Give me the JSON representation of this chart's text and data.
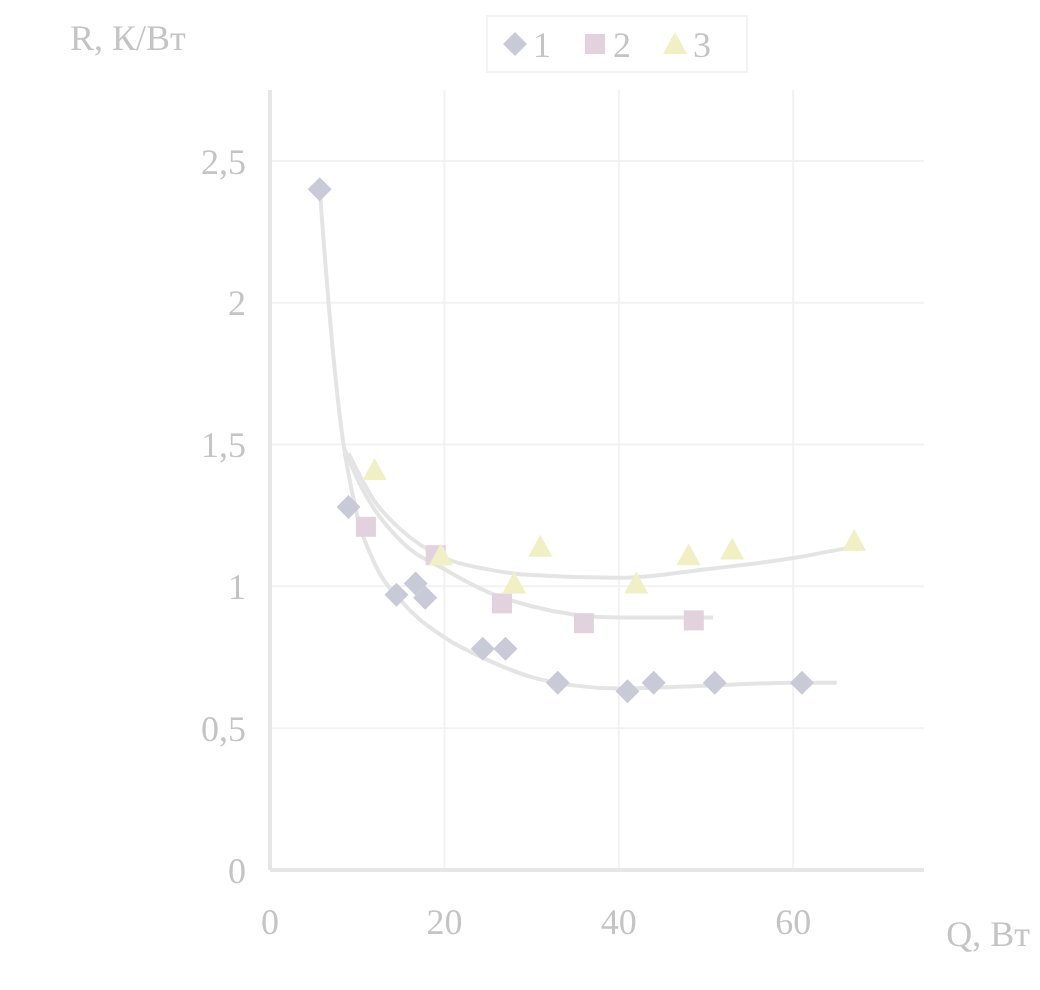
{
  "chart_data": {
    "type": "scatter",
    "xlabel": "Q, Вт",
    "ylabel": "R, К/Вт",
    "xlim": [
      0,
      75
    ],
    "ylim": [
      0,
      2.75
    ],
    "xticks": [
      0,
      20,
      40,
      60
    ],
    "yticks": [
      {
        "value": 0,
        "label": "0"
      },
      {
        "value": 0.5,
        "label": "0,5"
      },
      {
        "value": 1,
        "label": "1"
      },
      {
        "value": 1.5,
        "label": "1,5"
      },
      {
        "value": 2,
        "label": "2"
      },
      {
        "value": 2.5,
        "label": "2,5"
      }
    ],
    "grid": true,
    "legend": "top",
    "line_style": "solid",
    "series": [
      {
        "name": "1",
        "marker": "diamond",
        "color": "#c9cad8",
        "x": [
          5.7,
          9,
          14.5,
          16.7,
          17.8,
          24.4,
          27,
          33,
          41,
          44,
          51,
          61
        ],
        "values": [
          2.4,
          1.28,
          0.97,
          1.01,
          0.96,
          0.78,
          0.78,
          0.66,
          0.63,
          0.66,
          0.66,
          0.66
        ]
      },
      {
        "name": "2",
        "marker": "square",
        "color": "#e2d2de",
        "x": [
          11,
          19,
          26.6,
          36,
          48.6
        ],
        "values": [
          1.21,
          1.11,
          0.94,
          0.87,
          0.88
        ]
      },
      {
        "name": "3",
        "marker": "triangle",
        "color": "#f0f0c4",
        "x": [
          12,
          19.6,
          28,
          31,
          42,
          48,
          53,
          67
        ],
        "values": [
          1.41,
          1.11,
          1.01,
          1.14,
          1.01,
          1.11,
          1.13,
          1.16
        ]
      },
      {
        "type": "line",
        "color": "#e4e4e4",
        "x": [
          5.7,
          7,
          8,
          10,
          12,
          15,
          20,
          25,
          30,
          35,
          40,
          50,
          60,
          65
        ],
        "values": [
          2.4,
          1.9,
          1.6,
          1.25,
          1.08,
          0.95,
          0.82,
          0.74,
          0.68,
          0.65,
          0.64,
          0.65,
          0.66,
          0.66
        ]
      },
      {
        "type": "line",
        "color": "#e4e4e4",
        "x": [
          8.6,
          10,
          15,
          20,
          25,
          30,
          35,
          40,
          50.8
        ],
        "values": [
          1.48,
          1.38,
          1.16,
          1.06,
          0.98,
          0.93,
          0.9,
          0.89,
          0.89
        ]
      },
      {
        "type": "line",
        "color": "#e4e4e4",
        "x": [
          9,
          12,
          15,
          20,
          25,
          30,
          40,
          50,
          60,
          67
        ],
        "values": [
          1.47,
          1.3,
          1.2,
          1.1,
          1.06,
          1.04,
          1.03,
          1.06,
          1.1,
          1.14
        ]
      }
    ]
  }
}
